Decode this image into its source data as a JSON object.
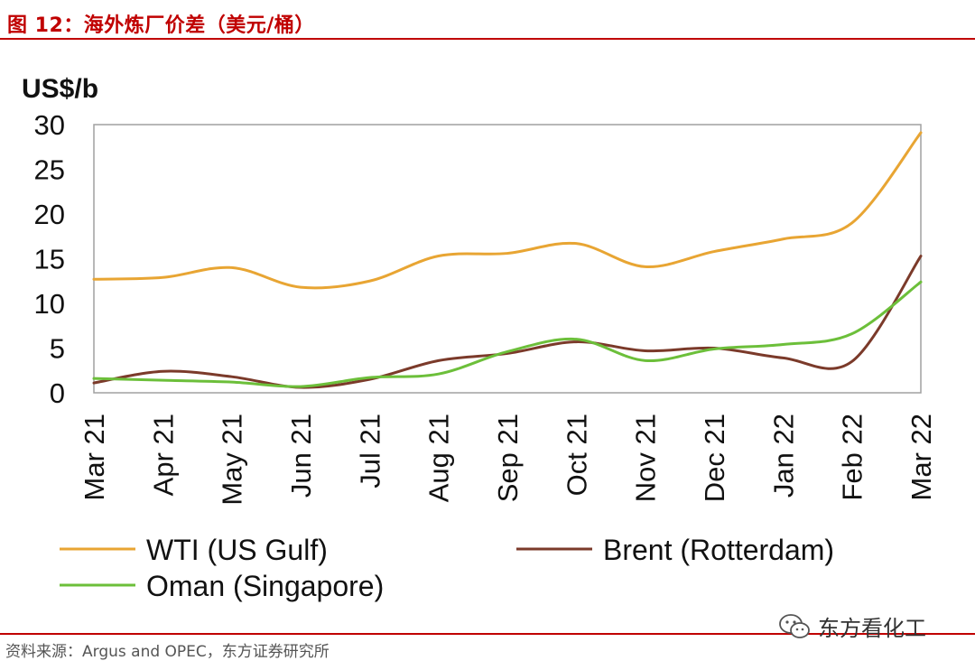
{
  "figure": {
    "title": "图 12：海外炼厂价差（美元/桶）",
    "source": "资料来源：Argus and OPEC，东方证券研究所",
    "watermark": "东方看化工"
  },
  "chart_data": {
    "type": "line",
    "ylabel": "US$/b",
    "xlabel": "",
    "ylim": [
      0,
      30
    ],
    "yticks": [
      0,
      5,
      10,
      15,
      20,
      25,
      30
    ],
    "grid": false,
    "legend_position": "bottom",
    "categories": [
      "Mar 21",
      "Apr 21",
      "May 21",
      "Jun 21",
      "Jul 21",
      "Aug 21",
      "Sep 21",
      "Oct 21",
      "Nov 21",
      "Dec 21",
      "Jan 22",
      "Feb 22",
      "Mar 22"
    ],
    "series": [
      {
        "name": "WTI (US Gulf)",
        "color": "#e8a533",
        "values": [
          12.7,
          12.9,
          14.0,
          11.8,
          12.5,
          15.3,
          15.6,
          16.7,
          14.1,
          15.8,
          17.2,
          19.0,
          29.1
        ]
      },
      {
        "name": "Brent (Rotterdam)",
        "color": "#7b3a2a",
        "values": [
          1.1,
          2.4,
          1.8,
          0.6,
          1.5,
          3.6,
          4.4,
          5.7,
          4.7,
          5.0,
          3.9,
          3.5,
          15.3
        ]
      },
      {
        "name": "Oman (Singapore)",
        "color": "#6cbf3a",
        "values": [
          1.6,
          1.4,
          1.2,
          0.7,
          1.7,
          2.1,
          4.6,
          6.0,
          3.6,
          4.9,
          5.4,
          6.6,
          12.4
        ]
      }
    ]
  }
}
